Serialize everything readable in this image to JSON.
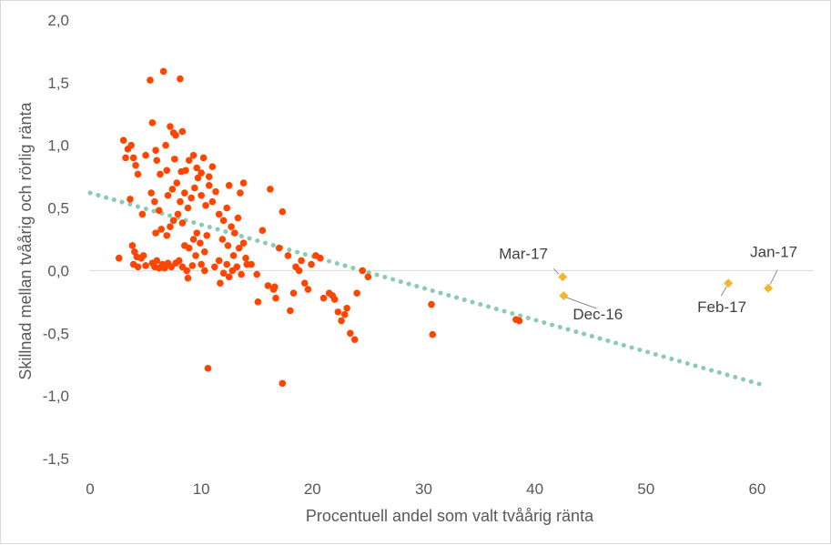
{
  "chart_data": {
    "type": "scatter",
    "xlabel": "Procentuell andel som valt tvåårig ränta",
    "ylabel": "Skillnad mellan tvåårig och rörlig ränta",
    "xlim": [
      0,
      65
    ],
    "ylim": [
      -1.5,
      2.0
    ],
    "x_ticks": [
      "0",
      "10",
      "20",
      "30",
      "40",
      "50",
      "60"
    ],
    "y_ticks": [
      "-1,5",
      "-1,0",
      "-0,5",
      "0,0",
      "0,5",
      "1,0",
      "1,5",
      "2,0"
    ],
    "x_tick_values": [
      0,
      10,
      20,
      30,
      40,
      50,
      60
    ],
    "y_tick_values": [
      -1.5,
      -1.0,
      -0.5,
      0.0,
      0.5,
      1.0,
      1.5,
      2.0
    ],
    "grid": false,
    "zero_line": true,
    "colors": {
      "history": "#ff4500",
      "recent": "#f2b630",
      "trend": "#8ccbb2",
      "zero_line": "#d9d9d9",
      "axis_text": "#595959"
    },
    "series": [
      {
        "marker": "circle",
        "points": [
          [
            2.6,
            0.1
          ],
          [
            3.0,
            1.04
          ],
          [
            3.2,
            0.9
          ],
          [
            3.4,
            0.97
          ],
          [
            3.6,
            0.57
          ],
          [
            3.7,
            1.0
          ],
          [
            3.9,
            0.9
          ],
          [
            4.1,
            0.84
          ],
          [
            4.3,
            0.77
          ],
          [
            3.8,
            0.2
          ],
          [
            4.0,
            0.15
          ],
          [
            4.2,
            0.11
          ],
          [
            3.9,
            0.05
          ],
          [
            4.3,
            0.03
          ],
          [
            4.6,
            0.1
          ],
          [
            4.8,
            0.12
          ],
          [
            5.0,
            0.04
          ],
          [
            4.7,
            0.45
          ],
          [
            5.0,
            0.92
          ],
          [
            5.4,
            1.52
          ],
          [
            5.6,
            1.18
          ],
          [
            5.9,
            0.96
          ],
          [
            6.0,
            0.88
          ],
          [
            6.3,
            0.77
          ],
          [
            6.6,
            1.59
          ],
          [
            6.8,
            1.0
          ],
          [
            6.9,
            0.8
          ],
          [
            7.2,
            1.15
          ],
          [
            7.5,
            1.1
          ],
          [
            7.7,
            1.08
          ],
          [
            8.1,
            1.53
          ],
          [
            8.3,
            1.11
          ],
          [
            5.5,
            0.62
          ],
          [
            5.8,
            0.55
          ],
          [
            6.2,
            0.48
          ],
          [
            5.6,
            0.06
          ],
          [
            5.8,
            0.03
          ],
          [
            6.0,
            0.08
          ],
          [
            6.2,
            0.02
          ],
          [
            6.5,
            0.05
          ],
          [
            6.7,
            0.02
          ],
          [
            7.0,
            0.06
          ],
          [
            7.3,
            0.03
          ],
          [
            7.7,
            0.06
          ],
          [
            8.0,
            0.08
          ],
          [
            8.3,
            0.03
          ],
          [
            8.7,
            0.0
          ],
          [
            8.8,
            -0.06
          ],
          [
            9.2,
            0.04
          ],
          [
            9.5,
            0.12
          ],
          [
            10.0,
            0.05
          ],
          [
            10.3,
            0.0
          ],
          [
            5.9,
            0.3
          ],
          [
            6.4,
            0.33
          ],
          [
            6.9,
            0.28
          ],
          [
            7.2,
            0.35
          ],
          [
            7.5,
            0.4
          ],
          [
            7.9,
            0.45
          ],
          [
            8.3,
            0.38
          ],
          [
            8.5,
            0.2
          ],
          [
            8.9,
            0.18
          ],
          [
            9.3,
            0.25
          ],
          [
            9.6,
            0.3
          ],
          [
            9.9,
            0.22
          ],
          [
            10.3,
            0.15
          ],
          [
            10.5,
            0.28
          ],
          [
            7.0,
            0.6
          ],
          [
            7.4,
            0.65
          ],
          [
            7.8,
            0.7
          ],
          [
            8.1,
            0.55
          ],
          [
            8.5,
            0.62
          ],
          [
            8.8,
            0.5
          ],
          [
            9.1,
            0.58
          ],
          [
            9.4,
            0.66
          ],
          [
            9.7,
            0.74
          ],
          [
            10.0,
            0.6
          ],
          [
            10.4,
            0.52
          ],
          [
            10.7,
            0.68
          ],
          [
            11.0,
            0.55
          ],
          [
            11.3,
            0.63
          ],
          [
            8.6,
            0.8
          ],
          [
            8.9,
            0.88
          ],
          [
            9.3,
            0.92
          ],
          [
            9.6,
            0.82
          ],
          [
            10.0,
            0.78
          ],
          [
            10.2,
            0.9
          ],
          [
            10.7,
            0.75
          ],
          [
            11.0,
            0.83
          ],
          [
            7.6,
            0.89
          ],
          [
            8.2,
            0.79
          ],
          [
            11.6,
            0.45
          ],
          [
            12.0,
            0.4
          ],
          [
            12.3,
            0.5
          ],
          [
            12.7,
            0.35
          ],
          [
            13.0,
            0.3
          ],
          [
            13.3,
            0.42
          ],
          [
            13.5,
            0.62
          ],
          [
            13.8,
            0.7
          ],
          [
            12.5,
            0.68
          ],
          [
            11.9,
            0.25
          ],
          [
            12.4,
            0.2
          ],
          [
            12.9,
            0.12
          ],
          [
            13.4,
            0.18
          ],
          [
            13.8,
            0.22
          ],
          [
            14.1,
            0.05
          ],
          [
            11.2,
            0.03
          ],
          [
            11.6,
            0.08
          ],
          [
            12.0,
            -0.02
          ],
          [
            12.3,
            0.05
          ],
          [
            12.8,
            0.0
          ],
          [
            13.2,
            0.03
          ],
          [
            13.6,
            -0.03
          ],
          [
            14.0,
            0.1
          ],
          [
            14.5,
            0.05
          ],
          [
            11.7,
            -0.1
          ],
          [
            12.5,
            -0.05
          ],
          [
            15.0,
            -0.03
          ],
          [
            15.5,
            0.32
          ],
          [
            16.0,
            -0.12
          ],
          [
            16.2,
            0.65
          ],
          [
            16.5,
            -0.15
          ],
          [
            17.0,
            0.18
          ],
          [
            17.3,
            0.47
          ],
          [
            17.8,
            0.12
          ],
          [
            18.0,
            -0.32
          ],
          [
            18.3,
            -0.18
          ],
          [
            18.8,
            0.0
          ],
          [
            19.0,
            0.08
          ],
          [
            19.3,
            -0.1
          ],
          [
            19.6,
            -0.15
          ],
          [
            19.9,
            0.05
          ],
          [
            20.3,
            0.12
          ],
          [
            20.7,
            0.1
          ],
          [
            21.0,
            -0.22
          ],
          [
            21.5,
            -0.18
          ],
          [
            21.8,
            -0.2
          ],
          [
            22.0,
            -0.23
          ],
          [
            22.3,
            -0.33
          ],
          [
            22.6,
            -0.4
          ],
          [
            22.9,
            -0.35
          ],
          [
            23.1,
            -0.3
          ],
          [
            23.4,
            -0.5
          ],
          [
            23.8,
            -0.55
          ],
          [
            24.0,
            -0.18
          ],
          [
            15.1,
            -0.25
          ],
          [
            16.6,
            -0.13
          ],
          [
            16.7,
            -0.22
          ],
          [
            18.5,
            0.03
          ],
          [
            10.6,
            -0.78
          ],
          [
            17.3,
            -0.9
          ],
          [
            24.5,
            0.0
          ],
          [
            25.0,
            -0.05
          ],
          [
            30.7,
            -0.27
          ],
          [
            30.8,
            -0.51
          ],
          [
            38.6,
            -0.4
          ],
          [
            38.3,
            -0.39
          ]
        ]
      },
      {
        "marker": "diamond",
        "points": [
          [
            42.5,
            -0.05
          ],
          [
            42.6,
            -0.2
          ],
          [
            57.4,
            -0.1
          ],
          [
            61.0,
            -0.14
          ]
        ],
        "labels": [
          "Mar-17",
          "Dec-16",
          "Feb-17",
          "Jan-17"
        ]
      }
    ],
    "trendline": {
      "style": "dotted",
      "from": [
        0,
        0.62
      ],
      "to": [
        60.4,
        -0.91
      ]
    }
  }
}
